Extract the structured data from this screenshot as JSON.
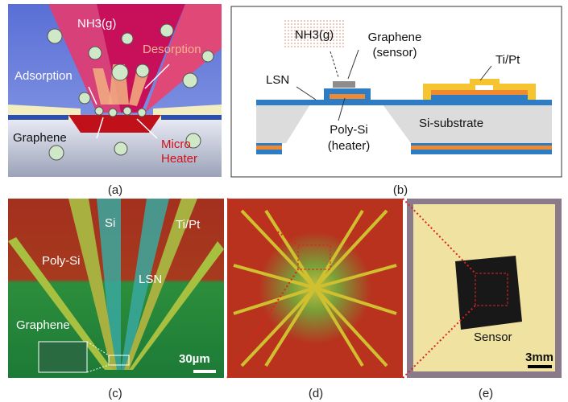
{
  "panel_a": {
    "caption": "(a)",
    "labels": [
      "NH3(g)",
      "Desorption",
      "Adsorption",
      "Graphene",
      "Micro",
      "Heater"
    ]
  },
  "panel_b": {
    "caption": "(b)",
    "labels": [
      "NH3(g)",
      "Graphene",
      "(sensor)",
      "Ti/Pt",
      "LSN",
      "Si-substrate",
      "Poly-Si",
      "(heater)"
    ]
  },
  "panel_c": {
    "caption": "(c)",
    "labels": [
      "Si",
      "Ti/Pt",
      "Poly-Si",
      "LSN",
      "Graphene"
    ],
    "scale_bar": "30µm"
  },
  "panel_d": {
    "caption": "(d)"
  },
  "panel_e": {
    "caption": "(e)",
    "labels": [
      "Sensor"
    ],
    "scale_bar": "3mm"
  }
}
